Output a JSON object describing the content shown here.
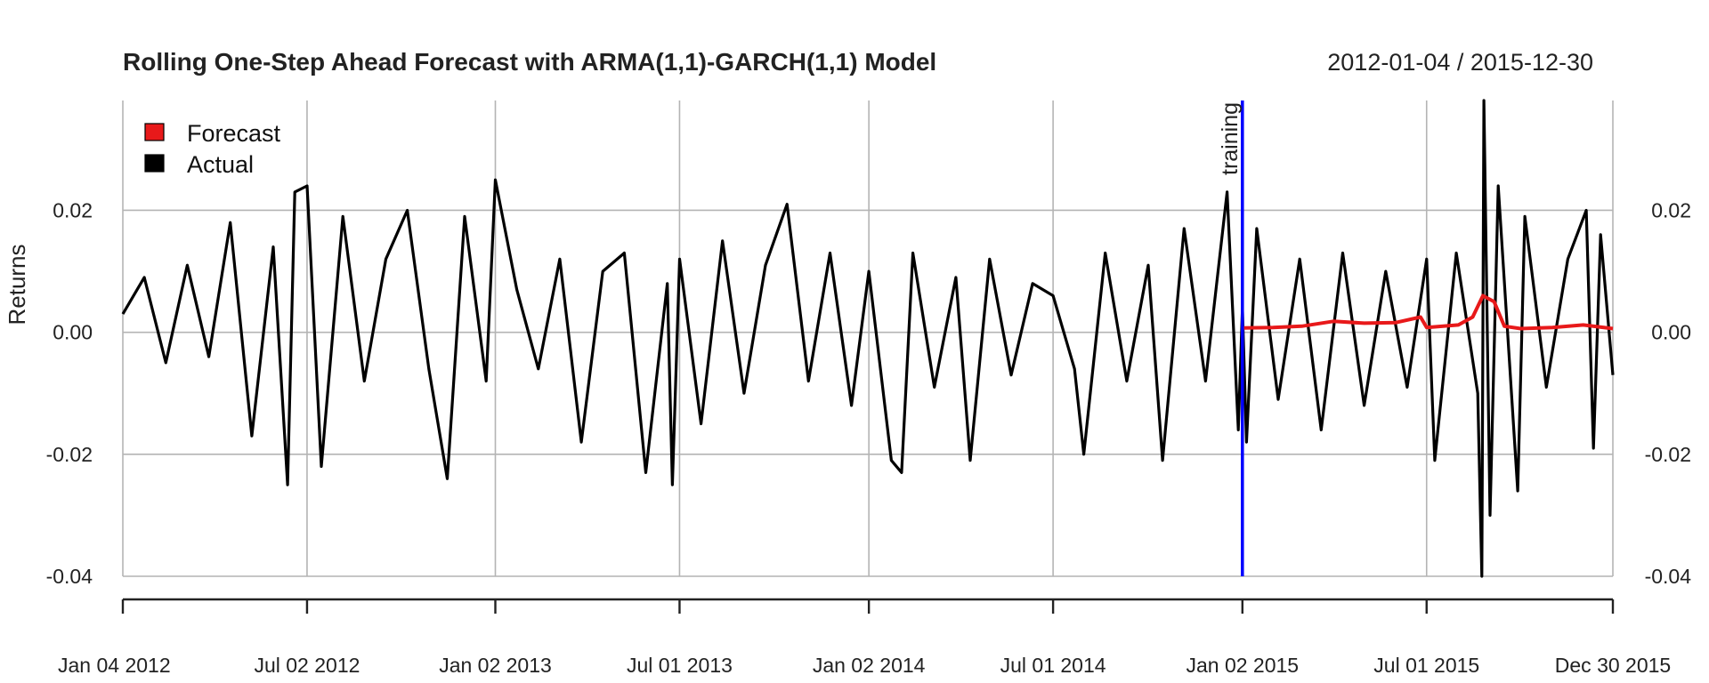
{
  "chart_data": {
    "type": "line",
    "title": "Rolling One-Step Ahead Forecast with ARMA(1,1)-GARCH(1,1) Model",
    "date_range": "2012-01-04 / 2015-12-30",
    "xlabel": "",
    "ylabel": "Returns",
    "x_start": "2012-01-04",
    "x_end": "2015-12-30",
    "ylim": [
      -0.04,
      0.038
    ],
    "y_ticks": [
      -0.04,
      -0.02,
      0.0,
      0.02
    ],
    "y_tick_labels": [
      "-0.04",
      "-0.02",
      "0.00",
      "0.02"
    ],
    "x_ticks": [
      "2012-01-04",
      "2012-07-02",
      "2013-01-02",
      "2013-07-01",
      "2014-01-02",
      "2014-07-01",
      "2015-01-02",
      "2015-07-01",
      "2015-12-30"
    ],
    "x_tick_labels": [
      "Jan 04 2012",
      "Jul 02 2012",
      "Jan 02 2013",
      "Jul 01 2013",
      "Jan 02 2014",
      "Jul 01 2014",
      "Jan 02 2015",
      "Jul 01 2015",
      "Dec 30 2015"
    ],
    "grid": true,
    "legend": {
      "placement": "top-left",
      "entries": [
        {
          "name": "Forecast",
          "color": "#e8191a"
        },
        {
          "name": "Actual",
          "color": "#000000"
        }
      ]
    },
    "annotation": {
      "label": "training",
      "date": "2015-01-02",
      "color": "#0000ff"
    },
    "series": [
      {
        "name": "Actual",
        "color": "#000000",
        "points": [
          [
            "2012-01-04",
            0.003
          ],
          [
            "2012-01-25",
            0.009
          ],
          [
            "2012-02-15",
            -0.005
          ],
          [
            "2012-03-07",
            0.011
          ],
          [
            "2012-03-28",
            -0.004
          ],
          [
            "2012-04-18",
            0.018
          ],
          [
            "2012-05-09",
            -0.017
          ],
          [
            "2012-05-30",
            0.014
          ],
          [
            "2012-06-13",
            -0.025
          ],
          [
            "2012-06-20",
            0.023
          ],
          [
            "2012-07-02",
            0.024
          ],
          [
            "2012-07-16",
            -0.022
          ],
          [
            "2012-08-06",
            0.019
          ],
          [
            "2012-08-27",
            -0.008
          ],
          [
            "2012-09-17",
            0.012
          ],
          [
            "2012-10-08",
            0.02
          ],
          [
            "2012-10-29",
            -0.006
          ],
          [
            "2012-11-16",
            -0.024
          ],
          [
            "2012-12-03",
            0.019
          ],
          [
            "2012-12-24",
            -0.008
          ],
          [
            "2013-01-02",
            0.025
          ],
          [
            "2013-01-23",
            0.007
          ],
          [
            "2013-02-13",
            -0.006
          ],
          [
            "2013-03-06",
            0.012
          ],
          [
            "2013-03-27",
            -0.018
          ],
          [
            "2013-04-17",
            0.01
          ],
          [
            "2013-05-08",
            0.013
          ],
          [
            "2013-05-29",
            -0.023
          ],
          [
            "2013-06-19",
            0.008
          ],
          [
            "2013-06-24",
            -0.025
          ],
          [
            "2013-07-01",
            0.012
          ],
          [
            "2013-07-22",
            -0.015
          ],
          [
            "2013-08-12",
            0.015
          ],
          [
            "2013-09-02",
            -0.01
          ],
          [
            "2013-09-23",
            0.011
          ],
          [
            "2013-10-14",
            0.021
          ],
          [
            "2013-11-04",
            -0.008
          ],
          [
            "2013-11-25",
            0.013
          ],
          [
            "2013-12-16",
            -0.012
          ],
          [
            "2014-01-02",
            0.01
          ],
          [
            "2014-01-24",
            -0.021
          ],
          [
            "2014-02-03",
            -0.023
          ],
          [
            "2014-02-14",
            0.013
          ],
          [
            "2014-03-07",
            -0.009
          ],
          [
            "2014-03-28",
            0.009
          ],
          [
            "2014-04-11",
            -0.021
          ],
          [
            "2014-04-30",
            0.012
          ],
          [
            "2014-05-21",
            -0.007
          ],
          [
            "2014-06-11",
            0.008
          ],
          [
            "2014-07-01",
            0.006
          ],
          [
            "2014-07-22",
            -0.006
          ],
          [
            "2014-07-31",
            -0.02
          ],
          [
            "2014-08-21",
            0.013
          ],
          [
            "2014-09-11",
            -0.008
          ],
          [
            "2014-10-02",
            0.011
          ],
          [
            "2014-10-16",
            -0.021
          ],
          [
            "2014-11-06",
            0.017
          ],
          [
            "2014-11-27",
            -0.008
          ],
          [
            "2014-12-18",
            0.023
          ],
          [
            "2014-12-29",
            -0.016
          ],
          [
            "2015-01-02",
            0.004
          ],
          [
            "2015-01-06",
            -0.018
          ],
          [
            "2015-01-16",
            0.017
          ],
          [
            "2015-02-06",
            -0.011
          ],
          [
            "2015-02-27",
            0.012
          ],
          [
            "2015-03-20",
            -0.016
          ],
          [
            "2015-04-10",
            0.013
          ],
          [
            "2015-05-01",
            -0.012
          ],
          [
            "2015-05-22",
            0.01
          ],
          [
            "2015-06-12",
            -0.009
          ],
          [
            "2015-07-01",
            0.012
          ],
          [
            "2015-07-09",
            -0.021
          ],
          [
            "2015-07-30",
            0.013
          ],
          [
            "2015-08-20",
            -0.01
          ],
          [
            "2015-08-24",
            -0.04
          ],
          [
            "2015-08-26",
            0.038
          ],
          [
            "2015-09-01",
            -0.03
          ],
          [
            "2015-09-09",
            0.024
          ],
          [
            "2015-09-28",
            -0.026
          ],
          [
            "2015-10-05",
            0.019
          ],
          [
            "2015-10-26",
            -0.009
          ],
          [
            "2015-11-16",
            0.012
          ],
          [
            "2015-12-04",
            0.02
          ],
          [
            "2015-12-11",
            -0.019
          ],
          [
            "2015-12-18",
            0.016
          ],
          [
            "2015-12-30",
            -0.007
          ]
        ]
      },
      {
        "name": "Forecast",
        "color": "#e8191a",
        "points": [
          [
            "2015-01-02",
            0.0007
          ],
          [
            "2015-02-01",
            0.0008
          ],
          [
            "2015-03-01",
            0.001
          ],
          [
            "2015-04-01",
            0.0018
          ],
          [
            "2015-05-01",
            0.0015
          ],
          [
            "2015-06-01",
            0.0016
          ],
          [
            "2015-06-25",
            0.0025
          ],
          [
            "2015-07-01",
            0.0008
          ],
          [
            "2015-08-01",
            0.0012
          ],
          [
            "2015-08-15",
            0.0025
          ],
          [
            "2015-08-25",
            0.006
          ],
          [
            "2015-09-05",
            0.005
          ],
          [
            "2015-09-15",
            0.001
          ],
          [
            "2015-10-01",
            0.0006
          ],
          [
            "2015-11-01",
            0.0008
          ],
          [
            "2015-12-01",
            0.0012
          ],
          [
            "2015-12-30",
            0.0006
          ]
        ]
      }
    ]
  }
}
